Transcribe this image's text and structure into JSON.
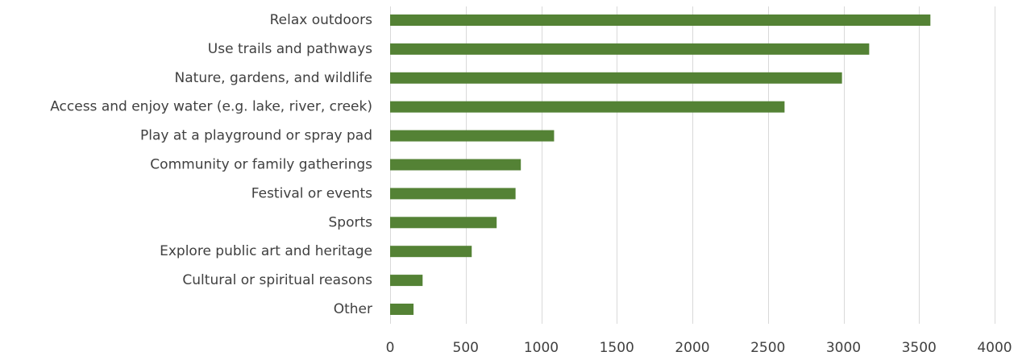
{
  "chart_data": {
    "type": "bar",
    "orientation": "horizontal",
    "title": "",
    "xlabel": "",
    "ylabel": "",
    "xlim": [
      0,
      4000
    ],
    "x_ticks": [
      0,
      500,
      1000,
      1500,
      2000,
      2500,
      3000,
      3500,
      4000
    ],
    "grid": "vertical gridlines on",
    "legend": "none",
    "bar_color": "#548235",
    "categories": [
      "Relax outdoors",
      "Use trails and pathways",
      "Nature, gardens, and wildlife",
      "Access and enjoy water (e.g. lake, river, creek)",
      "Play at a playground or spray pad",
      "Community or family gatherings",
      "Festival or events",
      "Sports",
      "Explore public art and heritage",
      "Cultural or spiritual reasons",
      "Other"
    ],
    "values": [
      3575,
      3170,
      2990,
      2610,
      1085,
      865,
      830,
      705,
      540,
      215,
      155
    ]
  }
}
